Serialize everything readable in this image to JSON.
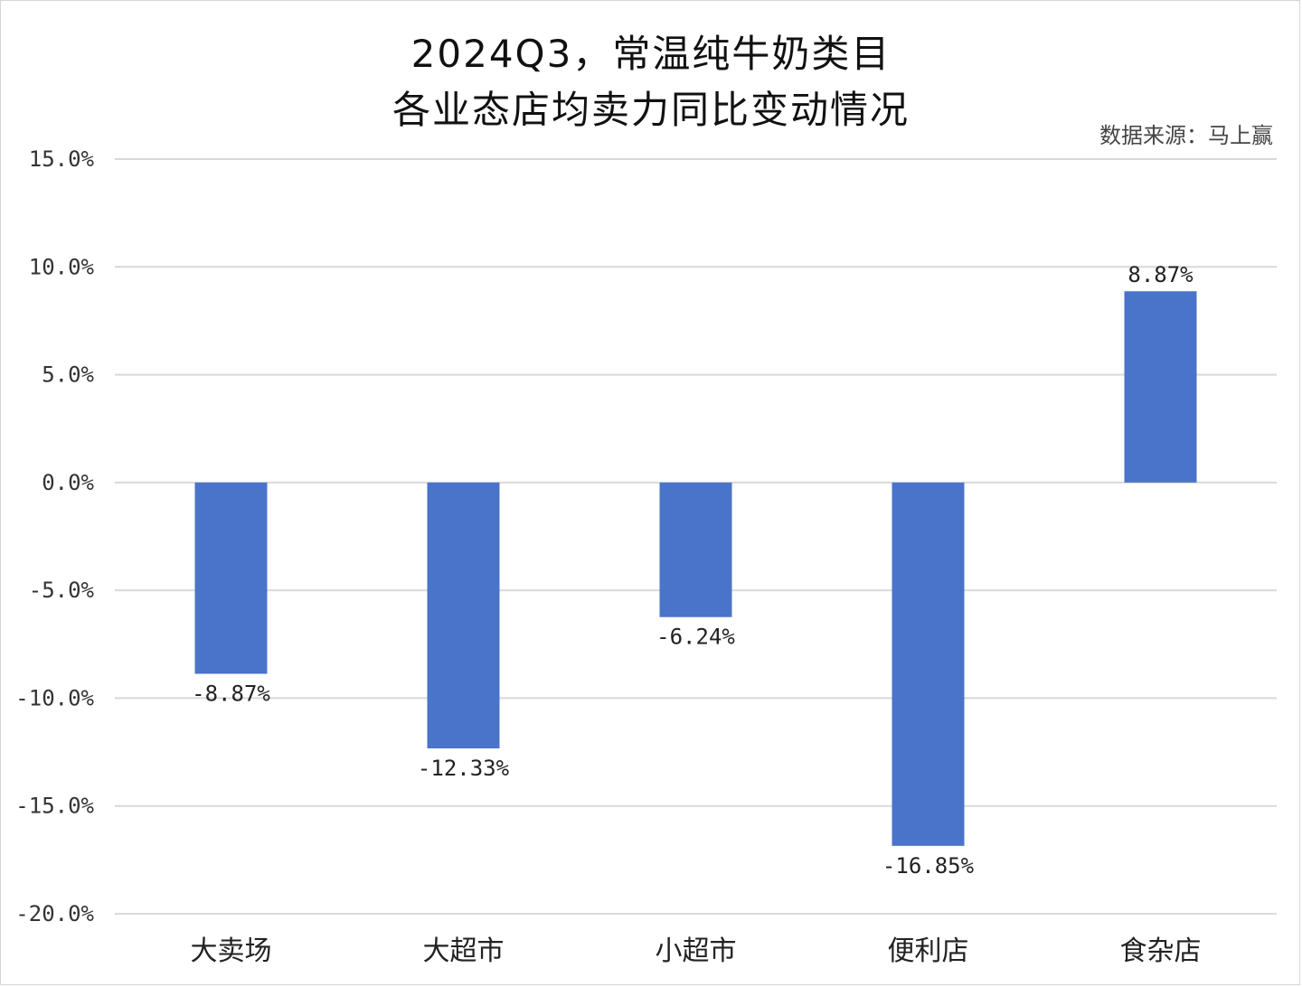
{
  "chart_data": {
    "type": "bar",
    "title_line1": "2024Q3，常温纯牛奶类目",
    "title_line2": "各业态店均卖力同比变动情况",
    "source": "数据来源：马上赢",
    "categories": [
      "大卖场",
      "大超市",
      "小超市",
      "便利店",
      "食杂店"
    ],
    "values": [
      -8.87,
      -12.33,
      -6.24,
      -16.85,
      8.87
    ],
    "data_labels": [
      "-8.87%",
      "-12.33%",
      "-6.24%",
      "-16.85%",
      "8.87%"
    ],
    "ylim": [
      -20,
      15
    ],
    "yticks": [
      15,
      10,
      5,
      0,
      -5,
      -10,
      -15,
      -20
    ],
    "ytick_labels": [
      "15.0%",
      "10.0%",
      "5.0%",
      "0.0%",
      "-5.0%",
      "-10.0%",
      "-15.0%",
      "-20.0%"
    ],
    "grid": true,
    "bar_color": "#4a74c9",
    "grid_color": "#d9d9d9"
  }
}
